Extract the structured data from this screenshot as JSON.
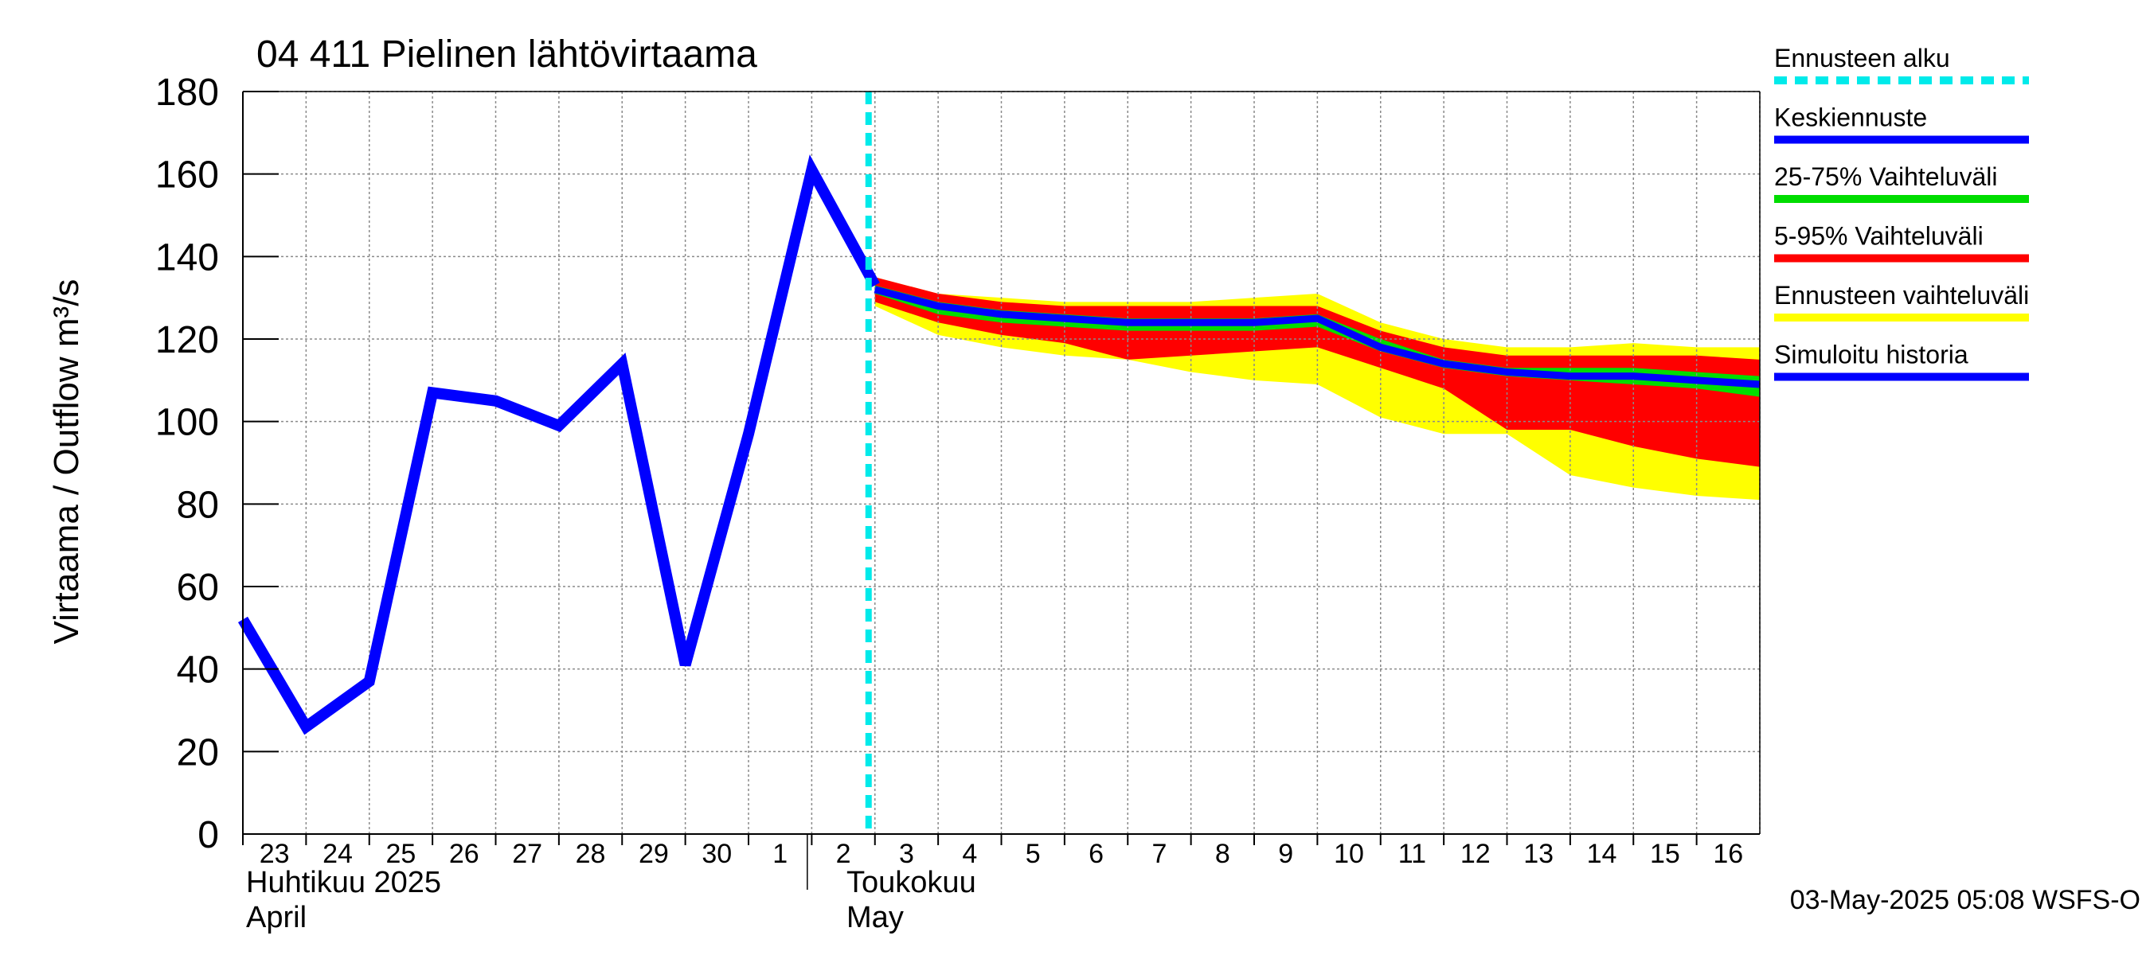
{
  "chart_data": {
    "type": "area",
    "title": "04 411 Pielinen lähtövirtaama",
    "ylabel": "Virtaama / Outflow    m³/s",
    "ylim": [
      0,
      180
    ],
    "yticks": [
      0,
      20,
      40,
      60,
      80,
      100,
      120,
      140,
      160,
      180
    ],
    "x_date_range": [
      "2025-04-23",
      "2025-05-17"
    ],
    "day_ticks": [
      "23",
      "24",
      "25",
      "26",
      "27",
      "28",
      "29",
      "30",
      "1",
      "2",
      "3",
      "4",
      "5",
      "6",
      "7",
      "8",
      "9",
      "10",
      "11",
      "12",
      "13",
      "14",
      "15",
      "16"
    ],
    "month_labels": [
      {
        "date": "2025-04-23",
        "fi": "Huhtikuu  2025",
        "en": "April"
      },
      {
        "date": "2025-05-02",
        "fi": "Toukokuu",
        "en": "May"
      }
    ],
    "forecast_start": "2025-05-03",
    "grid": true,
    "legend_position": "right",
    "timestamp": "03-May-2025 05:08 WSFS-O",
    "legend": [
      {
        "key": "forecast_start",
        "label": "Ennusteen alku",
        "color": "#00eaea",
        "style": "dashed"
      },
      {
        "key": "median",
        "label": "Keskiennuste",
        "color": "#0000ff"
      },
      {
        "key": "p25_75",
        "label": "25-75% Vaihteluväli",
        "color": "#00dd00"
      },
      {
        "key": "p5_95",
        "label": "5-95% Vaihteluväli",
        "color": "#ff0000"
      },
      {
        "key": "full_range",
        "label": "Ennusteen vaihteluväli",
        "color": "#ffff00"
      },
      {
        "key": "history",
        "label": "Simuloitu historia",
        "color": "#0000ff"
      }
    ],
    "history": {
      "x": [
        "2025-04-23",
        "2025-04-24",
        "2025-04-25",
        "2025-04-26",
        "2025-04-27",
        "2025-04-28",
        "2025-04-29",
        "2025-04-30",
        "2025-05-01",
        "2025-05-02",
        "2025-05-03"
      ],
      "y": [
        52,
        26,
        37,
        107,
        105,
        99,
        114,
        41,
        97,
        161,
        133
      ]
    },
    "forecast": {
      "x": [
        "2025-05-03",
        "2025-05-04",
        "2025-05-05",
        "2025-05-06",
        "2025-05-07",
        "2025-05-08",
        "2025-05-09",
        "2025-05-10",
        "2025-05-11",
        "2025-05-12",
        "2025-05-13",
        "2025-05-14",
        "2025-05-15",
        "2025-05-16",
        "2025-05-17"
      ],
      "median": [
        132,
        128,
        126,
        125,
        124,
        124,
        124,
        125,
        118,
        114,
        112,
        111,
        111,
        110,
        109
      ],
      "p25": [
        131,
        126,
        124,
        123,
        122,
        122,
        122,
        123,
        117,
        113,
        111,
        110,
        109,
        108,
        106
      ],
      "p75": [
        133,
        129,
        127,
        126,
        125,
        125,
        125,
        126,
        120,
        115,
        113,
        113,
        113,
        112,
        111
      ],
      "p5": [
        129,
        124,
        121,
        119,
        115,
        116,
        117,
        118,
        113,
        108,
        98,
        98,
        94,
        91,
        89
      ],
      "p95": [
        135,
        131,
        129,
        128,
        128,
        128,
        128,
        128,
        122,
        118,
        116,
        116,
        116,
        116,
        115
      ],
      "min": [
        128,
        121,
        118,
        116,
        115,
        112,
        110,
        109,
        101,
        97,
        97,
        87,
        84,
        82,
        81
      ],
      "max": [
        135,
        131,
        130,
        129,
        129,
        129,
        130,
        131,
        124,
        120,
        118,
        118,
        119,
        118,
        118
      ]
    }
  }
}
